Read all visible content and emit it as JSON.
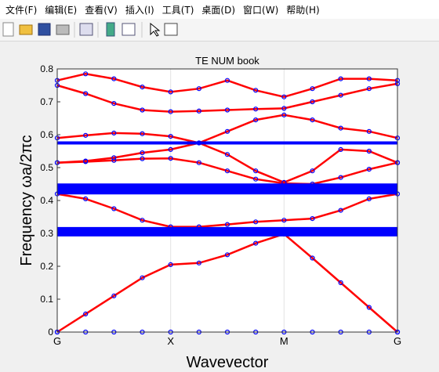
{
  "menu": [
    "文件(F)",
    "编辑(E)",
    "查看(V)",
    "插入(I)",
    "工具(T)",
    "桌面(D)",
    "窗口(W)",
    "帮助(H)"
  ],
  "chart_data": {
    "type": "line",
    "title": "TE  NUM   book",
    "x_label": "Wavevector",
    "y_label": "Frequency ωa/2πc",
    "x": [
      0,
      0.25,
      0.5,
      0.75,
      1,
      1.25,
      1.5,
      1.75,
      2,
      2.25,
      2.5,
      2.75,
      3
    ],
    "xlim": [
      0,
      3
    ],
    "ylim": [
      0,
      0.8
    ],
    "xticks": [
      {
        "value": 0,
        "label": "G"
      },
      {
        "value": 1,
        "label": "X"
      },
      {
        "value": 2,
        "label": "M"
      },
      {
        "value": 3,
        "label": "G"
      }
    ],
    "yticks": [
      0,
      0.1,
      0.2,
      0.3,
      0.4,
      0.5,
      0.6,
      0.7,
      0.8
    ],
    "grid": "x",
    "series": [
      {
        "color": "#ff0000",
        "marker_color": "#0000ff",
        "line_width": 2.5,
        "values": [
          0,
          0.055,
          0.11,
          0.165,
          0.205,
          0.21,
          0.235,
          0.27,
          0.298,
          0.225,
          0.15,
          0.075,
          0
        ]
      },
      {
        "color": "#ff0000",
        "marker_color": "#0000ff",
        "line_width": 2.5,
        "values": [
          0.42,
          0.405,
          0.375,
          0.34,
          0.32,
          0.32,
          0.327,
          0.335,
          0.34,
          0.345,
          0.37,
          0.405,
          0.42
        ]
      },
      {
        "color": "#ff0000",
        "marker_color": "#0000ff",
        "line_width": 2.5,
        "values": [
          0.515,
          0.518,
          0.522,
          0.527,
          0.528,
          0.515,
          0.49,
          0.465,
          0.452,
          0.45,
          0.47,
          0.495,
          0.515
        ]
      },
      {
        "color": "#ff0000",
        "marker_color": "#0000ff",
        "line_width": 2.5,
        "values": [
          0.515,
          0.52,
          0.53,
          0.545,
          0.555,
          0.575,
          0.54,
          0.49,
          0.455,
          0.49,
          0.555,
          0.55,
          0.515
        ]
      },
      {
        "color": "#ff0000",
        "marker_color": "#0000ff",
        "line_width": 2.5,
        "values": [
          0.59,
          0.598,
          0.605,
          0.603,
          0.595,
          0.575,
          0.61,
          0.645,
          0.66,
          0.645,
          0.62,
          0.61,
          0.59
        ]
      },
      {
        "color": "#ff0000",
        "marker_color": "#0000ff",
        "line_width": 2.5,
        "values": [
          0.75,
          0.725,
          0.695,
          0.675,
          0.67,
          0.672,
          0.675,
          0.678,
          0.68,
          0.7,
          0.72,
          0.74,
          0.755
        ]
      },
      {
        "color": "#ff0000",
        "marker_color": "#0000ff",
        "line_width": 2.5,
        "values": [
          0.765,
          0.785,
          0.77,
          0.745,
          0.73,
          0.74,
          0.765,
          0.735,
          0.715,
          0.74,
          0.77,
          0.77,
          0.765
        ]
      },
      {
        "color": null,
        "marker_color": "#0000ff",
        "line_width": 0,
        "values": [
          0,
          0,
          0,
          0,
          0,
          0,
          0,
          0,
          0,
          0,
          0,
          0,
          0
        ]
      },
      {
        "color": "#0000ff",
        "marker_color": null,
        "line_width": 12,
        "values": [
          0.305,
          0.305,
          0.305,
          0.305,
          0.305,
          0.305,
          0.305,
          0.305,
          0.305,
          0.305,
          0.305,
          0.305,
          0.305
        ]
      },
      {
        "color": "#0000ff",
        "marker_color": null,
        "line_width": 14,
        "values": [
          0.435,
          0.435,
          0.435,
          0.435,
          0.435,
          0.435,
          0.435,
          0.435,
          0.435,
          0.435,
          0.435,
          0.435,
          0.435
        ]
      },
      {
        "color": "#0000ff",
        "marker_color": null,
        "line_width": 4,
        "values": [
          0.575,
          0.575,
          0.575,
          0.575,
          0.575,
          0.575,
          0.575,
          0.575,
          0.575,
          0.575,
          0.575,
          0.575,
          0.575
        ]
      }
    ]
  }
}
